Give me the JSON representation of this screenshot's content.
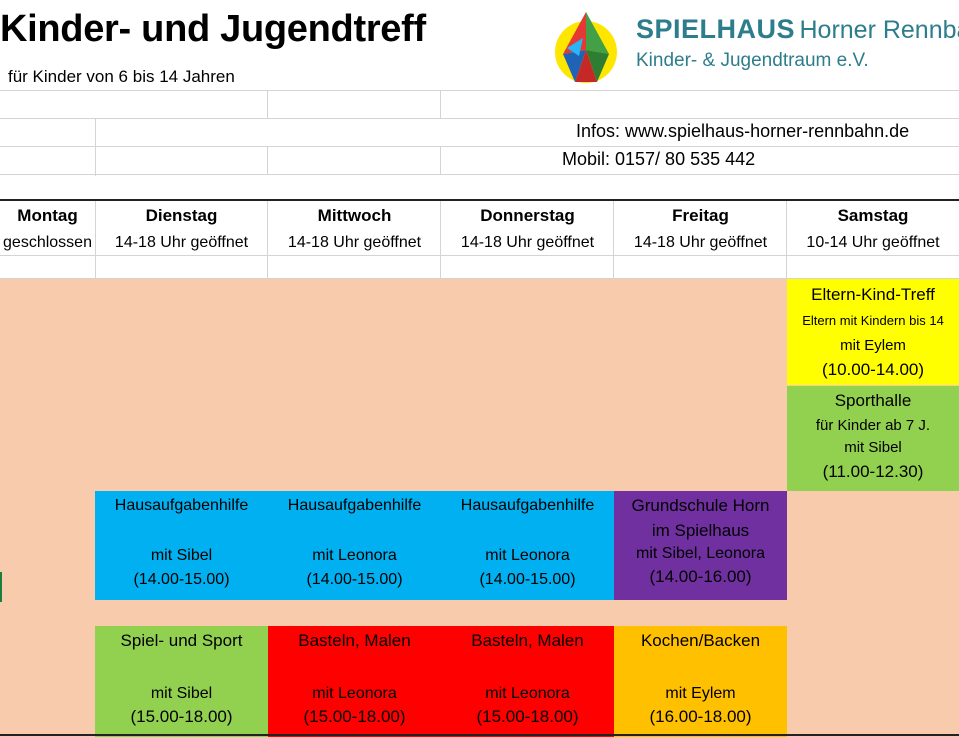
{
  "header": {
    "title": "Kinder- und Jugendtreff",
    "subtitle": "für Kinder von 6 bis 14 Jahren",
    "logo_name": "SPIELHAUS",
    "logo_place": "Horner Rennbahn",
    "logo_tagline": "Kinder- & Jugendtraum e.V.",
    "info_web": "Infos: www.spielhaus-horner-rennbahn.de",
    "info_phone": "Mobil: 0157/ 80 535 442"
  },
  "colors": {
    "peach": "#f8cbad",
    "yellow": "#ffff00",
    "green": "#92d050",
    "blue": "#00b0f0",
    "purple": "#7030a0",
    "red": "#ff0000",
    "orange": "#ffc000",
    "logo_teal": "#2e7d8c"
  },
  "days": [
    {
      "name": "Montag",
      "hours": "geschlossen"
    },
    {
      "name": "Dienstag",
      "hours": "14-18 Uhr geöffnet"
    },
    {
      "name": "Mittwoch",
      "hours": "14-18 Uhr geöffnet"
    },
    {
      "name": "Donnerstag",
      "hours": "14-18 Uhr geöffnet"
    },
    {
      "name": "Freitag",
      "hours": "14-18 Uhr geöffnet"
    },
    {
      "name": "Samstag",
      "hours": "10-14 Uhr geöffnet"
    }
  ],
  "activities": {
    "sat_eltern": {
      "title": "Eltern-Kind-Treff",
      "line2": "Eltern mit Kindern bis 14",
      "line3": "mit Eylem",
      "time": "(10.00-14.00)"
    },
    "sat_sport": {
      "title": "Sporthalle",
      "line2": "für Kinder ab 7 J.",
      "line3": "mit Sibel",
      "time": "(11.00-12.30)"
    },
    "tue_hw": {
      "title": "Hausaufgabenhilfe",
      "line3": "mit Sibel",
      "time": "(14.00-15.00)"
    },
    "wed_hw": {
      "title": "Hausaufgabenhilfe",
      "line3": "mit Leonora",
      "time": "(14.00-15.00)"
    },
    "thu_hw": {
      "title": "Hausaufgabenhilfe",
      "line3": "mit Leonora",
      "time": "(14.00-15.00)"
    },
    "fri_school": {
      "title": "Grundschule Horn",
      "line2": "im Spielhaus",
      "line3": "mit Sibel, Leonora",
      "time": "(14.00-16.00)"
    },
    "tue_play": {
      "title": "Spiel- und Sport",
      "line3": "mit Sibel",
      "time": "(15.00-18.00)"
    },
    "wed_craft": {
      "title": "Basteln, Malen",
      "line3": "mit Leonora",
      "time": "(15.00-18.00)"
    },
    "thu_craft": {
      "title": "Basteln, Malen",
      "line3": "mit Leonora",
      "time": "(15.00-18.00)"
    },
    "fri_cook": {
      "title": "Kochen/Backen",
      "line3": "mit Eylem",
      "time": "(16.00-18.00)"
    }
  }
}
